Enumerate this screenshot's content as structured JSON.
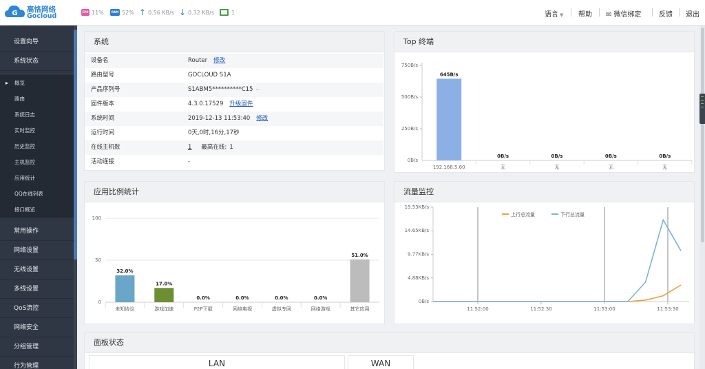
{
  "brand": {
    "name_cn": "高恪网络",
    "name_en": "Gocloud"
  },
  "topbar": {
    "cpu_label": "CPU",
    "cpu_value": "11%",
    "ram_label": "RAM",
    "ram_value": "52%",
    "upload": "0.56 KB/s",
    "download": "0.32 KB/s",
    "online_count": "1",
    "language": "语言",
    "help": "帮助",
    "wechat_bind": "微信绑定",
    "feedback": "反馈",
    "logout": "退出"
  },
  "sidebar": {
    "top_items": [
      "设置向导",
      "系统状态"
    ],
    "sub_items": [
      "概览",
      "路由",
      "系统日志",
      "实时监控",
      "历史监控",
      "主机监控",
      "应用统计",
      "QQ在线列表",
      "接口概览"
    ],
    "bottom_items": [
      "常用操作",
      "网络设置",
      "无线设置",
      "多线设置",
      "QoS流控",
      "网络安全",
      "分组管理",
      "行为管理"
    ]
  },
  "system": {
    "title": "系统",
    "rows": [
      {
        "label": "设备名",
        "value": "Router",
        "link": "修改"
      },
      {
        "label": "路由型号",
        "value": "GOCLOUD S1A",
        "link": ""
      },
      {
        "label": "产品序列号",
        "value": "S1ABM5**********C15",
        "link": ""
      },
      {
        "label": "固件版本",
        "value": "4.3.0.17529",
        "link": "升级固件"
      },
      {
        "label": "系统时间",
        "value": "2019-12-13 11:53:40",
        "link": "修改"
      },
      {
        "label": "运行时间",
        "value": "0天,0时,16分,17秒",
        "link": ""
      },
      {
        "label": "在线主机数",
        "value": "1",
        "extra_label": "最高在线:",
        "extra_value": "1",
        "link": ""
      },
      {
        "label": "活动连接",
        "value": "-",
        "link": ""
      }
    ]
  },
  "top_terminal": {
    "title": "Top 终端",
    "chart_data": {
      "type": "bar",
      "categories": [
        "192.168.5.60",
        "无",
        "无",
        "无",
        "无"
      ],
      "values": [
        645,
        0,
        0,
        0,
        0
      ],
      "value_labels": [
        "645B/s",
        "0B/s",
        "0B/s",
        "0B/s",
        "0B/s"
      ],
      "yticks": [
        "750B/s",
        "500B/s",
        "250B/s",
        "0B/s"
      ],
      "ytick_values": [
        750,
        500,
        250,
        0
      ],
      "ylim": [
        0,
        750
      ],
      "bar_color": "#8cb0e6"
    }
  },
  "app_ratio": {
    "title": "应用比例统计",
    "chart_data": {
      "type": "bar",
      "categories": [
        "未知协议",
        "游戏加速",
        "P2P下载",
        "网络电视",
        "虚拟专网",
        "网络游戏",
        "其它应用"
      ],
      "values": [
        32.0,
        17.0,
        0.0,
        0.0,
        0.0,
        0.0,
        51.0
      ],
      "value_labels": [
        "32.0%",
        "17.0%",
        "0.0%",
        "0.0%",
        "0.0%",
        "0.0%",
        "51.0%"
      ],
      "yticks": [
        "100",
        "50",
        "0"
      ],
      "ytick_values": [
        100,
        50,
        0
      ],
      "ylim": [
        0,
        100
      ],
      "colors": [
        "#6aa6c8",
        "#6d8f34",
        "#6aa6c8",
        "#6aa6c8",
        "#6aa6c8",
        "#6aa6c8",
        "#bcbcbc"
      ]
    }
  },
  "traffic": {
    "title": "流量监控",
    "chart_data": {
      "type": "line",
      "yticks": [
        "19.53KB/s",
        "14.65KB/s",
        "9.77KB/s",
        "4.88KB/s",
        "0B/s"
      ],
      "ytick_values": [
        19.53,
        14.65,
        9.77,
        4.88,
        0
      ],
      "ylim": [
        0,
        19.53
      ],
      "xticks": [
        "11:52:00",
        "11:52:30",
        "11:53:00",
        "11:53:30"
      ],
      "series": [
        {
          "name": "上行总流量",
          "color": "#f0a040",
          "values": [
            0,
            0,
            0,
            0,
            0,
            0,
            0,
            0,
            0,
            0,
            0,
            0,
            0.3,
            1.2,
            3.4
          ]
        },
        {
          "name": "下行总流量",
          "color": "#7ab3e0",
          "values": [
            0,
            0,
            0,
            0,
            0,
            0,
            0,
            0,
            0,
            0,
            0,
            0,
            4.0,
            16.9,
            10.5
          ]
        }
      ],
      "legend_position": "top-center"
    }
  },
  "panel_status": {
    "title": "面板状态",
    "lan": "LAN",
    "wan": "WAN"
  }
}
